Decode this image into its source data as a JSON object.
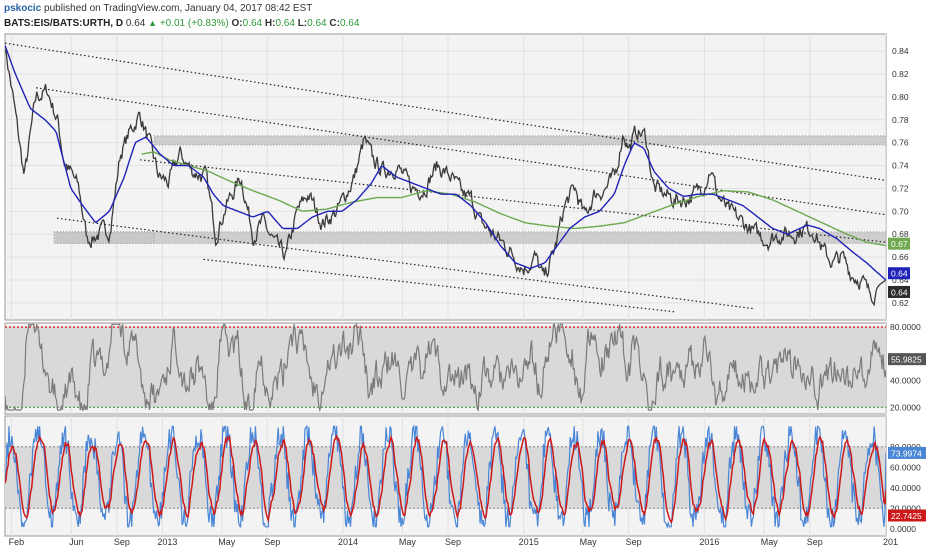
{
  "header": {
    "author": "pskocic",
    "published": "published on TradingView.com, January 04, 2017 08:42 EST",
    "symbol": "BATS:EIS/BATS:URTH, D",
    "last": "0.64",
    "change": "+0.01 (+0.83%)",
    "o_label": "O:",
    "o_value": "0.64",
    "h_label": "H:",
    "h_value": "0.64",
    "l_label": "L:",
    "l_value": "0.64",
    "c_label": "C:",
    "c_value": "0.64"
  },
  "colors": {
    "price": "#3a3a3a",
    "ma_fast": "#1f22b8",
    "ma_slow": "#6ea84f",
    "rsi": "#7b7b7b",
    "stoch_k": "#4a86d6",
    "stoch_d": "#cc1a1a",
    "zone": "#c8c8c8",
    "panel_bg": "#f3f3f3"
  },
  "chart_data": [
    {
      "type": "line",
      "panel": "price",
      "x_ticks": [
        "Feb",
        "Jun",
        "Sep",
        "2013",
        "May",
        "Sep",
        "2014",
        "May",
        "Sep",
        "2015",
        "May",
        "Sep",
        "2016",
        "May",
        "Sep",
        "201"
      ],
      "x_tick_days": [
        12,
        133,
        225,
        317,
        437,
        529,
        682,
        802,
        894,
        1047,
        1167,
        1259,
        1412,
        1533,
        1625,
        1778
      ],
      "x_range": [
        -1,
        1779
      ],
      "ylim": [
        0.605,
        0.855
      ],
      "y_ticks": [
        "0.84",
        "0.82",
        "0.80",
        "0.78",
        "0.76",
        "0.74",
        "0.72",
        "0.70",
        "0.68",
        "0.66",
        "0.64",
        "0.62"
      ],
      "y_tick_values": [
        0.84,
        0.82,
        0.8,
        0.78,
        0.76,
        0.74,
        0.72,
        0.7,
        0.68,
        0.66,
        0.64,
        0.62
      ],
      "price_anchors": [
        [
          -1,
          0.845
        ],
        [
          15,
          0.8
        ],
        [
          38,
          0.73
        ],
        [
          62,
          0.8
        ],
        [
          85,
          0.805
        ],
        [
          105,
          0.78
        ],
        [
          118,
          0.745
        ],
        [
          148,
          0.72
        ],
        [
          165,
          0.675
        ],
        [
          188,
          0.68
        ],
        [
          212,
          0.685
        ],
        [
          232,
          0.75
        ],
        [
          252,
          0.77
        ],
        [
          272,
          0.785
        ],
        [
          290,
          0.76
        ],
        [
          310,
          0.73
        ],
        [
          330,
          0.725
        ],
        [
          352,
          0.75
        ],
        [
          378,
          0.735
        ],
        [
          405,
          0.73
        ],
        [
          425,
          0.68
        ],
        [
          446,
          0.705
        ],
        [
          476,
          0.73
        ],
        [
          500,
          0.68
        ],
        [
          520,
          0.69
        ],
        [
          546,
          0.67
        ],
        [
          566,
          0.66
        ],
        [
          590,
          0.7
        ],
        [
          612,
          0.715
        ],
        [
          640,
          0.69
        ],
        [
          670,
          0.7
        ],
        [
          705,
          0.73
        ],
        [
          725,
          0.762
        ],
        [
          742,
          0.745
        ],
        [
          764,
          0.735
        ],
        [
          790,
          0.74
        ],
        [
          820,
          0.72
        ],
        [
          846,
          0.72
        ],
        [
          872,
          0.74
        ],
        [
          900,
          0.73
        ],
        [
          922,
          0.715
        ],
        [
          942,
          0.71
        ],
        [
          960,
          0.69
        ],
        [
          1010,
          0.67
        ],
        [
          1048,
          0.65
        ],
        [
          1070,
          0.66
        ],
        [
          1088,
          0.64
        ],
        [
          1112,
          0.67
        ],
        [
          1130,
          0.705
        ],
        [
          1150,
          0.72
        ],
        [
          1170,
          0.695
        ],
        [
          1190,
          0.715
        ],
        [
          1212,
          0.72
        ],
        [
          1232,
          0.73
        ],
        [
          1248,
          0.77
        ],
        [
          1260,
          0.755
        ],
        [
          1276,
          0.77
        ],
        [
          1294,
          0.765
        ],
        [
          1310,
          0.72
        ],
        [
          1332,
          0.715
        ],
        [
          1352,
          0.71
        ],
        [
          1372,
          0.71
        ],
        [
          1394,
          0.715
        ],
        [
          1412,
          0.725
        ],
        [
          1425,
          0.738
        ],
        [
          1438,
          0.715
        ],
        [
          1460,
          0.7
        ],
        [
          1490,
          0.69
        ],
        [
          1516,
          0.68
        ],
        [
          1540,
          0.675
        ],
        [
          1566,
          0.68
        ],
        [
          1590,
          0.68
        ],
        [
          1612,
          0.685
        ],
        [
          1634,
          0.684
        ],
        [
          1652,
          0.665
        ],
        [
          1672,
          0.655
        ],
        [
          1690,
          0.66
        ],
        [
          1710,
          0.645
        ],
        [
          1730,
          0.64
        ],
        [
          1744,
          0.628
        ],
        [
          1756,
          0.63
        ],
        [
          1766,
          0.636
        ],
        [
          1779,
          0.64
        ]
      ],
      "ma_fast_anchors": [
        [
          -1,
          0.845
        ],
        [
          20,
          0.82
        ],
        [
          50,
          0.79
        ],
        [
          80,
          0.78
        ],
        [
          102,
          0.77
        ],
        [
          132,
          0.72
        ],
        [
          156,
          0.705
        ],
        [
          182,
          0.69
        ],
        [
          210,
          0.7
        ],
        [
          240,
          0.73
        ],
        [
          262,
          0.76
        ],
        [
          284,
          0.765
        ],
        [
          312,
          0.75
        ],
        [
          340,
          0.74
        ],
        [
          370,
          0.74
        ],
        [
          400,
          0.73
        ],
        [
          420,
          0.715
        ],
        [
          440,
          0.705
        ],
        [
          470,
          0.7
        ],
        [
          500,
          0.695
        ],
        [
          530,
          0.7
        ],
        [
          560,
          0.685
        ],
        [
          590,
          0.685
        ],
        [
          620,
          0.695
        ],
        [
          650,
          0.7
        ],
        [
          680,
          0.7
        ],
        [
          710,
          0.71
        ],
        [
          740,
          0.725
        ],
        [
          760,
          0.74
        ],
        [
          790,
          0.73
        ],
        [
          820,
          0.725
        ],
        [
          850,
          0.72
        ],
        [
          880,
          0.715
        ],
        [
          910,
          0.715
        ],
        [
          940,
          0.705
        ],
        [
          970,
          0.69
        ],
        [
          1000,
          0.67
        ],
        [
          1030,
          0.655
        ],
        [
          1060,
          0.65
        ],
        [
          1090,
          0.655
        ],
        [
          1115,
          0.67
        ],
        [
          1140,
          0.685
        ],
        [
          1170,
          0.695
        ],
        [
          1200,
          0.7
        ],
        [
          1230,
          0.715
        ],
        [
          1250,
          0.74
        ],
        [
          1270,
          0.76
        ],
        [
          1290,
          0.755
        ],
        [
          1310,
          0.735
        ],
        [
          1340,
          0.72
        ],
        [
          1370,
          0.713
        ],
        [
          1400,
          0.715
        ],
        [
          1430,
          0.715
        ],
        [
          1460,
          0.71
        ],
        [
          1490,
          0.705
        ],
        [
          1520,
          0.695
        ],
        [
          1550,
          0.685
        ],
        [
          1580,
          0.68
        ],
        [
          1600,
          0.684
        ],
        [
          1620,
          0.688
        ],
        [
          1645,
          0.685
        ],
        [
          1680,
          0.676
        ],
        [
          1710,
          0.665
        ],
        [
          1740,
          0.655
        ],
        [
          1760,
          0.647
        ],
        [
          1779,
          0.64
        ]
      ],
      "ma_slow_anchors": [
        [
          275,
          0.75
        ],
        [
          300,
          0.752
        ],
        [
          330,
          0.745
        ],
        [
          370,
          0.74
        ],
        [
          410,
          0.735
        ],
        [
          450,
          0.727
        ],
        [
          500,
          0.718
        ],
        [
          550,
          0.71
        ],
        [
          600,
          0.7
        ],
        [
          650,
          0.702
        ],
        [
          700,
          0.708
        ],
        [
          750,
          0.712
        ],
        [
          800,
          0.712
        ],
        [
          850,
          0.718
        ],
        [
          900,
          0.715
        ],
        [
          950,
          0.708
        ],
        [
          1000,
          0.698
        ],
        [
          1050,
          0.69
        ],
        [
          1100,
          0.687
        ],
        [
          1150,
          0.685
        ],
        [
          1200,
          0.687
        ],
        [
          1250,
          0.69
        ],
        [
          1300,
          0.698
        ],
        [
          1350,
          0.706
        ],
        [
          1400,
          0.713
        ],
        [
          1450,
          0.718
        ],
        [
          1500,
          0.717
        ],
        [
          1550,
          0.71
        ],
        [
          1600,
          0.7
        ],
        [
          1650,
          0.69
        ],
        [
          1700,
          0.68
        ],
        [
          1740,
          0.673
        ],
        [
          1779,
          0.67
        ]
      ],
      "zones": [
        {
          "x0": 104,
          "x1": 1779,
          "y0": 0.672,
          "y1": 0.682
        },
        {
          "x0": 98,
          "x1": 300,
          "y0": 0.672,
          "y1": 0.682
        },
        {
          "x0": 300,
          "x1": 1779,
          "y0": 0.758,
          "y1": 0.766
        }
      ],
      "trendlines": [
        [
          [
            -1,
            0.847
          ],
          [
            1779,
            0.727
          ]
        ],
        [
          [
            62,
            0.808
          ],
          [
            1779,
            0.697
          ]
        ],
        [
          [
            104,
            0.694
          ],
          [
            1510,
            0.615
          ]
        ],
        [
          [
            272,
            0.745
          ],
          [
            1779,
            0.673
          ]
        ],
        [
          [
            400,
            0.658
          ],
          [
            1355,
            0.612
          ]
        ]
      ],
      "labels": {
        "ma_slow": "0.67",
        "ma_fast": "0.64",
        "price": "0.64"
      }
    },
    {
      "type": "line",
      "panel": "rsi",
      "ylim": [
        15,
        83
      ],
      "y_ticks": [
        "80.0000",
        "40.0000",
        "20.0000"
      ],
      "y_tick_values": [
        80,
        40,
        20
      ],
      "upper_line": 80,
      "lower_line": 20,
      "band": [
        20,
        80
      ],
      "last_value": "55.9825"
    },
    {
      "type": "line",
      "panel": "stochastic",
      "ylim": [
        -7,
        110
      ],
      "y_ticks": [
        "80.0000",
        "60.0000",
        "40.0000",
        "20.0000",
        "0.0000"
      ],
      "y_tick_values": [
        80,
        60,
        40,
        20,
        0
      ],
      "band": [
        20,
        80
      ],
      "k_value": "73.9974",
      "d_value": "22.7425"
    }
  ]
}
